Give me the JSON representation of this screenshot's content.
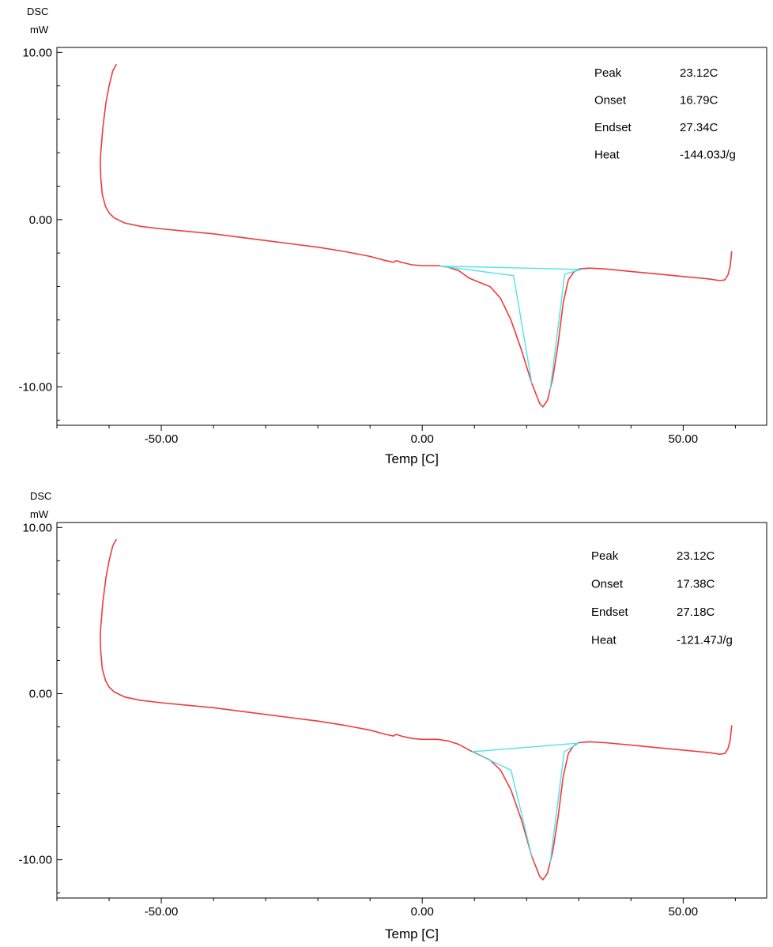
{
  "chart_data": [
    {
      "type": "line",
      "ylabel_line1": "DSC",
      "ylabel_line2": "mW",
      "xlabel": "Temp  [C]",
      "xlim": [
        -70,
        66
      ],
      "ylim": [
        -12.3,
        10.3
      ],
      "x_ticks": [
        {
          "value": -50,
          "label": "-50.00"
        },
        {
          "value": 0,
          "label": "0.00"
        },
        {
          "value": 50,
          "label": "50.00"
        }
      ],
      "y_ticks": [
        {
          "value": 10,
          "label": "10.00"
        },
        {
          "value": 0,
          "label": "0.00"
        },
        {
          "value": -10,
          "label": "-10.00"
        }
      ],
      "colors": {
        "curve": "#ef3b3b",
        "baseline": "#4fe3e8"
      },
      "results": [
        {
          "label": "Peak",
          "value": "23.12C"
        },
        {
          "label": "Onset",
          "value": "16.79C"
        },
        {
          "label": "Endset",
          "value": "27.34C"
        },
        {
          "label": "Heat",
          "value": "-144.03J/g"
        }
      ],
      "curve": [
        [
          -58.6,
          9.3
        ],
        [
          -59.3,
          8.9
        ],
        [
          -60.0,
          8.0
        ],
        [
          -60.6,
          7.0
        ],
        [
          -61.2,
          5.5
        ],
        [
          -61.6,
          4.0
        ],
        [
          -61.7,
          3.5
        ],
        [
          -61.6,
          2.5
        ],
        [
          -61.3,
          1.5
        ],
        [
          -60.7,
          0.8
        ],
        [
          -60.0,
          0.4
        ],
        [
          -59.0,
          0.1
        ],
        [
          -57.0,
          -0.2
        ],
        [
          -54.0,
          -0.4
        ],
        [
          -50.0,
          -0.55
        ],
        [
          -45.0,
          -0.7
        ],
        [
          -40.0,
          -0.85
        ],
        [
          -35.0,
          -1.05
        ],
        [
          -30.0,
          -1.25
        ],
        [
          -25.0,
          -1.45
        ],
        [
          -20.0,
          -1.65
        ],
        [
          -15.0,
          -1.9
        ],
        [
          -10.0,
          -2.2
        ],
        [
          -7.0,
          -2.45
        ],
        [
          -5.5,
          -2.55
        ],
        [
          -5.0,
          -2.45
        ],
        [
          -4.0,
          -2.55
        ],
        [
          -2.0,
          -2.7
        ],
        [
          0.0,
          -2.75
        ],
        [
          3.0,
          -2.75
        ],
        [
          5.0,
          -2.85
        ],
        [
          7.0,
          -3.05
        ],
        [
          9.0,
          -3.5
        ],
        [
          11.0,
          -3.75
        ],
        [
          13.0,
          -4.0
        ],
        [
          15.0,
          -4.7
        ],
        [
          17.0,
          -6.0
        ],
        [
          19.0,
          -7.8
        ],
        [
          21.0,
          -9.8
        ],
        [
          22.5,
          -11.0
        ],
        [
          23.12,
          -11.2
        ],
        [
          24.0,
          -10.8
        ],
        [
          25.0,
          -9.5
        ],
        [
          26.0,
          -7.5
        ],
        [
          27.0,
          -5.0
        ],
        [
          28.0,
          -3.6
        ],
        [
          29.0,
          -3.15
        ],
        [
          30.0,
          -2.95
        ],
        [
          32.0,
          -2.9
        ],
        [
          35.0,
          -2.95
        ],
        [
          40.0,
          -3.1
        ],
        [
          45.0,
          -3.25
        ],
        [
          50.0,
          -3.4
        ],
        [
          55.0,
          -3.55
        ],
        [
          57.0,
          -3.65
        ],
        [
          58.0,
          -3.6
        ],
        [
          58.6,
          -3.3
        ],
        [
          59.0,
          -2.8
        ],
        [
          59.3,
          -1.9
        ]
      ],
      "baseline": [
        [
          3.5,
          -2.78
        ],
        [
          30.5,
          -2.98
        ]
      ],
      "tangents": [
        {
          "points": [
            [
              3.5,
              -2.78
            ],
            [
              17.5,
              -3.35
            ],
            [
              21.0,
              -9.8
            ]
          ]
        },
        {
          "points": [
            [
              30.5,
              -2.98
            ],
            [
              27.3,
              -3.25
            ],
            [
              24.5,
              -10.2
            ]
          ]
        }
      ]
    },
    {
      "type": "line",
      "ylabel_line1": "DSC",
      "ylabel_line2": "mW",
      "xlabel": "Temp  [C]",
      "xlim": [
        -70,
        66
      ],
      "ylim": [
        -12.3,
        10.3
      ],
      "x_ticks": [
        {
          "value": -50,
          "label": "-50.00"
        },
        {
          "value": 0,
          "label": "0.00"
        },
        {
          "value": 50,
          "label": "50.00"
        }
      ],
      "y_ticks": [
        {
          "value": 10,
          "label": "10.00"
        },
        {
          "value": 0,
          "label": "0.00"
        },
        {
          "value": -10,
          "label": "-10.00"
        }
      ],
      "colors": {
        "curve": "#ef3b3b",
        "baseline": "#4fe3e8"
      },
      "results": [
        {
          "label": "Peak",
          "value": "23.12C"
        },
        {
          "label": "Onset",
          "value": "17.38C"
        },
        {
          "label": "Endset",
          "value": "27.18C"
        },
        {
          "label": "Heat",
          "value": "-121.47J/g"
        }
      ],
      "curve": [
        [
          -58.6,
          9.3
        ],
        [
          -59.3,
          8.9
        ],
        [
          -60.0,
          8.0
        ],
        [
          -60.6,
          7.0
        ],
        [
          -61.2,
          5.5
        ],
        [
          -61.6,
          4.0
        ],
        [
          -61.7,
          3.5
        ],
        [
          -61.6,
          2.5
        ],
        [
          -61.3,
          1.5
        ],
        [
          -60.7,
          0.8
        ],
        [
          -60.0,
          0.4
        ],
        [
          -59.0,
          0.1
        ],
        [
          -57.0,
          -0.2
        ],
        [
          -54.0,
          -0.4
        ],
        [
          -50.0,
          -0.55
        ],
        [
          -45.0,
          -0.7
        ],
        [
          -40.0,
          -0.85
        ],
        [
          -35.0,
          -1.05
        ],
        [
          -30.0,
          -1.25
        ],
        [
          -25.0,
          -1.45
        ],
        [
          -20.0,
          -1.65
        ],
        [
          -15.0,
          -1.9
        ],
        [
          -10.0,
          -2.2
        ],
        [
          -7.0,
          -2.45
        ],
        [
          -5.5,
          -2.55
        ],
        [
          -5.0,
          -2.45
        ],
        [
          -4.0,
          -2.55
        ],
        [
          -2.0,
          -2.7
        ],
        [
          0.0,
          -2.75
        ],
        [
          3.0,
          -2.75
        ],
        [
          5.0,
          -2.85
        ],
        [
          7.0,
          -3.05
        ],
        [
          9.0,
          -3.4
        ],
        [
          11.0,
          -3.7
        ],
        [
          13.0,
          -4.0
        ],
        [
          15.0,
          -4.6
        ],
        [
          17.0,
          -5.8
        ],
        [
          19.0,
          -7.6
        ],
        [
          21.0,
          -9.8
        ],
        [
          22.5,
          -11.0
        ],
        [
          23.12,
          -11.2
        ],
        [
          24.0,
          -10.8
        ],
        [
          25.0,
          -9.5
        ],
        [
          26.0,
          -7.5
        ],
        [
          27.0,
          -5.0
        ],
        [
          28.0,
          -3.6
        ],
        [
          29.0,
          -3.15
        ],
        [
          30.0,
          -2.95
        ],
        [
          32.0,
          -2.9
        ],
        [
          35.0,
          -2.95
        ],
        [
          40.0,
          -3.1
        ],
        [
          45.0,
          -3.25
        ],
        [
          50.0,
          -3.4
        ],
        [
          55.0,
          -3.55
        ],
        [
          57.0,
          -3.65
        ],
        [
          58.0,
          -3.6
        ],
        [
          58.6,
          -3.3
        ],
        [
          59.0,
          -2.8
        ],
        [
          59.3,
          -1.9
        ]
      ],
      "baseline": [
        [
          9.5,
          -3.5
        ],
        [
          30.0,
          -2.98
        ]
      ],
      "tangents": [
        {
          "points": [
            [
              9.5,
              -3.5
            ],
            [
              17.0,
              -4.6
            ],
            [
              21.0,
              -9.8
            ]
          ]
        },
        {
          "points": [
            [
              30.0,
              -2.98
            ],
            [
              27.2,
              -3.5
            ],
            [
              24.5,
              -10.2
            ]
          ]
        }
      ]
    }
  ]
}
